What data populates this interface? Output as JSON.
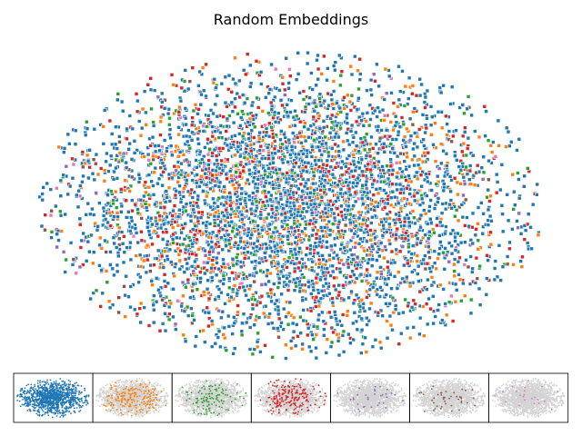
{
  "chart_data": {
    "type": "scatter",
    "title": "Random Embeddings",
    "xlabel": "",
    "ylabel": "",
    "axes_visible": false,
    "grid": false,
    "legend": "none",
    "main_plot": {
      "marker": "square",
      "marker_edge": "white",
      "approx_total_points": 5000,
      "shape": "ellipse",
      "x_range": [
        -1,
        1
      ],
      "y_range": [
        -1,
        1
      ]
    },
    "series": [
      {
        "color": "#1f77b4",
        "fraction": 0.62
      },
      {
        "color": "#ff7f0e",
        "fraction": 0.12
      },
      {
        "color": "#2ca02c",
        "fraction": 0.07
      },
      {
        "color": "#d62728",
        "fraction": 0.13
      },
      {
        "color": "#9467bd",
        "fraction": 0.02
      },
      {
        "color": "#8c564b",
        "fraction": 0.03
      },
      {
        "color": "#e377c2",
        "fraction": 0.01
      }
    ],
    "small_multiples": {
      "panel_count": 7,
      "background_point_color": "#d3d3d3",
      "highlight_order": [
        "#1f77b4",
        "#ff7f0e",
        "#2ca02c",
        "#d62728",
        "#9467bd",
        "#8c564b",
        "#e377c2"
      ]
    }
  }
}
